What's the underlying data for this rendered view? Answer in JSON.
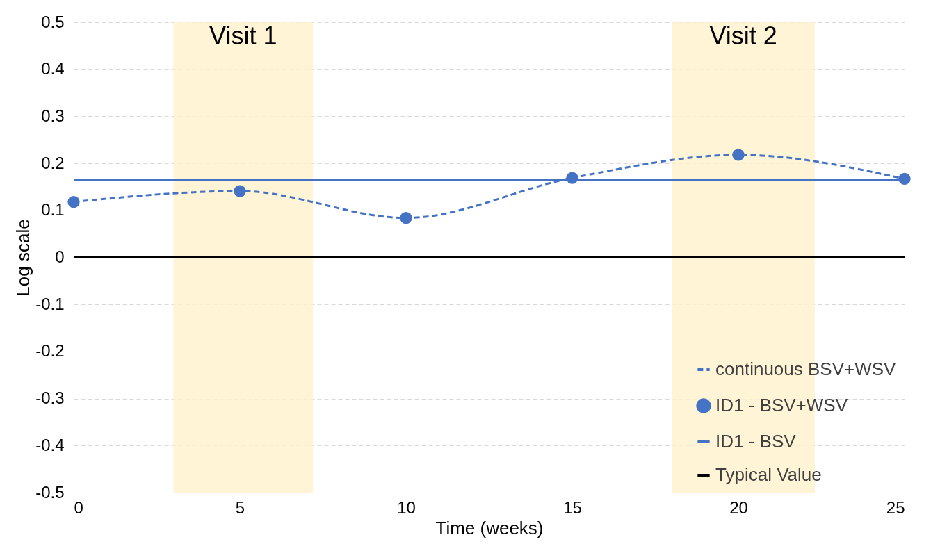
{
  "chart_data": {
    "type": "line",
    "xlabel": "Time (weeks)",
    "ylabel": "Log scale",
    "xlim": [
      0,
      25
    ],
    "ylim": [
      -0.5,
      0.5
    ],
    "xticks": [
      0,
      5,
      10,
      15,
      20,
      25
    ],
    "yticks": [
      -0.5,
      -0.4,
      -0.3,
      -0.2,
      -0.1,
      0,
      0.1,
      0.2,
      0.3,
      0.4,
      0.5
    ],
    "grid": "y",
    "legend": "bottom right",
    "bands": [
      {
        "axis": "x",
        "from": 3,
        "to": 7.2,
        "label": "Visit 1",
        "color": "#fff2cc"
      },
      {
        "axis": "x",
        "from": 18,
        "to": 22.3,
        "label": "Visit 2",
        "color": "#fff2cc"
      }
    ],
    "series": [
      {
        "name": "continuous BSV+WSV",
        "color": "#4472c4",
        "line_style": "dashed",
        "marker": "none",
        "x": [
          0,
          5,
          10,
          15,
          20,
          25
        ],
        "values": [
          0.118,
          0.141,
          0.084,
          0.169,
          0.218,
          0.167
        ]
      },
      {
        "name": "ID1 - BSV+WSV",
        "type": "scatter",
        "color": "#4472c4",
        "marker": "circle",
        "x": [
          0,
          5,
          10,
          15,
          20,
          25
        ],
        "values": [
          0.118,
          0.141,
          0.084,
          0.169,
          0.218,
          0.167
        ]
      },
      {
        "name": "ID1 - BSV",
        "color": "#4472c4",
        "line_style": "solid",
        "marker": "none",
        "x": [
          0,
          25
        ],
        "values": [
          0.164,
          0.164
        ]
      },
      {
        "name": "Typical Value",
        "color": "#000000",
        "line_style": "solid",
        "marker": "none",
        "x": [
          0,
          25
        ],
        "values": [
          0,
          0
        ]
      }
    ]
  }
}
